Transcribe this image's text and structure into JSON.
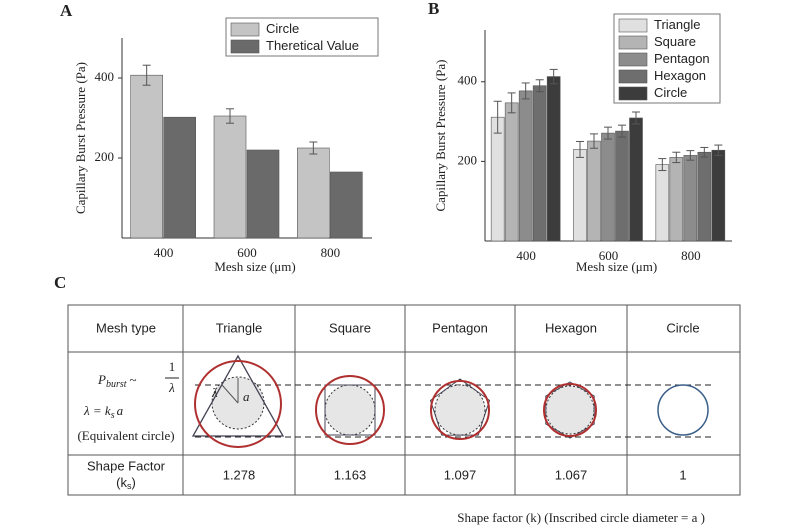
{
  "chart_data": [
    {
      "type": "bar",
      "label": "A",
      "ylabel": "Capillary Burst Pressure (Pa)",
      "xlabel": "Mesh size (μm)",
      "categories": [
        "400",
        "600",
        "800"
      ],
      "series": [
        {
          "name": "Circle",
          "color": "#c4c4c4",
          "values": [
            407,
            305,
            225
          ],
          "errors": [
            25,
            18,
            15
          ]
        },
        {
          "name": "Theretical Value",
          "color": "#6a6a6a",
          "values": [
            302,
            220,
            165
          ]
        }
      ],
      "ylim": [
        0,
        500
      ],
      "yticks": [
        200,
        400
      ],
      "legend": "upper right"
    },
    {
      "type": "bar",
      "label": "B",
      "ylabel": "Capillary Burst Pressure (Pa)",
      "xlabel": "Mesh size (μm)",
      "categories": [
        "400",
        "600",
        "800"
      ],
      "series": [
        {
          "name": "Triangle",
          "color": "#e0e0e0",
          "values": [
            311,
            230,
            192
          ],
          "errors": [
            40,
            20,
            15
          ]
        },
        {
          "name": "Square",
          "color": "#b4b4b4",
          "values": [
            347,
            251,
            210
          ],
          "errors": [
            25,
            18,
            13
          ]
        },
        {
          "name": "Pentagon",
          "color": "#8c8c8c",
          "values": [
            377,
            271,
            215
          ],
          "errors": [
            20,
            15,
            12
          ]
        },
        {
          "name": "Hexagon",
          "color": "#6e6e6e",
          "values": [
            390,
            276,
            223
          ],
          "errors": [
            15,
            15,
            12
          ]
        },
        {
          "name": "Circle",
          "color": "#3c3c3c",
          "values": [
            413,
            309,
            228
          ],
          "errors": [
            18,
            15,
            13
          ]
        }
      ],
      "ylim": [
        0,
        530
      ],
      "yticks": [
        200,
        400
      ],
      "legend": "upper right"
    }
  ],
  "table": {
    "label": "C",
    "headers": [
      "Mesh type",
      "Triangle",
      "Square",
      "Pentagon",
      "Hexagon",
      "Circle"
    ],
    "formula": {
      "p": "P",
      "burst": "burst",
      "sim": "~",
      "num": "1",
      "den": "λ",
      "lam": "λ = k",
      "s": "s",
      "a": "a",
      "equiv": "(Equivalent circle)"
    },
    "factor_label": "Shape Factor",
    "factor_k_open": "(k",
    "factor_k_sub": "s",
    "factor_k_close": ")",
    "factor_values": [
      1.278,
      1.163,
      1.097,
      1.067,
      1
    ],
    "lambda": "λ",
    "alpha": "a"
  },
  "caption": "Shape factor (k) (Inscribed circle diameter = a )"
}
